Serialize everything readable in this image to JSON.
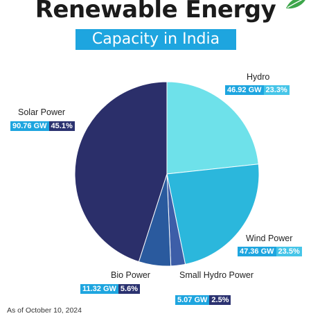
{
  "header": {
    "title": "Renewable Energy",
    "subtitle": "Capacity in India"
  },
  "footnote": "As of October 10, 2024",
  "chart_data": {
    "type": "pie",
    "title": "Renewable Energy",
    "subtitle": "Capacity in India",
    "slices": [
      {
        "name": "Hydro",
        "value_label": "46.92 GW",
        "value": 46.92,
        "percent": 23.3,
        "percent_label": "23.3%",
        "color": "#6ee1ea"
      },
      {
        "name": "Wind Power",
        "value_label": "47.36 GW",
        "value": 47.36,
        "percent": 23.5,
        "percent_label": "23.5%",
        "color": "#2bb7dc"
      },
      {
        "name": "Small Hydro Power",
        "value_label": "5.07 GW",
        "value": 5.07,
        "percent": 2.5,
        "percent_label": "2.5%",
        "color": "#3d5ea8"
      },
      {
        "name": "Bio Power",
        "value_label": "11.32 GW",
        "value": 11.32,
        "percent": 5.6,
        "percent_label": "5.6%",
        "color": "#2a5a9e"
      },
      {
        "name": "Solar Power",
        "value_label": "90.76 GW",
        "value": 90.76,
        "percent": 45.1,
        "percent_label": "45.1%",
        "color": "#2b2f6a"
      }
    ]
  },
  "colors": {
    "accent": "#1ea5df",
    "dark_badge": "#2b3270",
    "title_text": "#1b1b1b"
  },
  "icons": {
    "logo": "green-leaf-icon"
  }
}
